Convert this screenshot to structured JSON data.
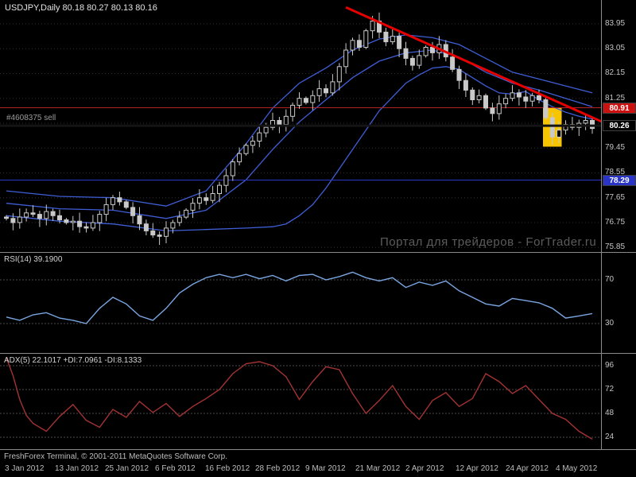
{
  "terminal": {
    "symbol_label": "USDJPY,Daily  80.18 80.27 80.13 80.16",
    "order_label": "#4608375 sell",
    "watermark": "Портал для трейдеров - ForTrader.ru",
    "status_bar": "FreshForex Terminal, © 2001-2011 MetaQuotes Software Corp."
  },
  "colors": {
    "background": "#000000",
    "grid": "#2f2f2f",
    "candle": "#c9c9c9",
    "band": "#3f5ed6",
    "trendline": "#e60000",
    "highlight": "#f7c500",
    "rsi_line": "#79a5e0",
    "adx_line": "#a33333",
    "separator": "#8a8a8a",
    "axis_text": "#c4c4c4",
    "level_line": "#4a4a4a"
  },
  "indicators": {
    "rsi": {
      "label": "RSI(14) 39.1900",
      "value": 39.19
    },
    "adx": {
      "label": "ADX(5) 22.1017 +DI:7.0961 -DI:8.1333",
      "adx": 22.1017,
      "plus_di": 7.0961,
      "minus_di": 8.1333
    }
  },
  "time_axis": [
    "3 Jan 2012",
    "13 Jan 2012",
    "25 Jan 2012",
    "6 Feb 2012",
    "16 Feb 2012",
    "28 Feb 2012",
    "9 Mar 2012",
    "21 Mar 2012",
    "2 Apr 2012",
    "12 Apr 2012",
    "24 Apr 2012",
    "4 May 2012"
  ],
  "chart_data": [
    {
      "type": "candlestick",
      "title": "USDJPY,Daily",
      "timeframe": "Daily",
      "ohlc_current": {
        "open": 80.18,
        "high": 80.27,
        "low": 80.13,
        "close": 80.16
      },
      "ylim": [
        75.66,
        84.81
      ],
      "grid_levels": [
        83.95,
        83.05,
        82.15,
        81.25,
        80.35,
        79.45,
        78.55,
        77.65,
        76.75,
        75.85
      ],
      "axis_labels": [
        "83.95",
        "83.05",
        "82.15",
        "81.25",
        "79.45",
        "78.55",
        "77.65",
        "76.75",
        "75.85"
      ],
      "first_open": 76.95,
      "closes": [
        76.9,
        76.75,
        76.95,
        77.1,
        77.05,
        76.9,
        77.15,
        77.0,
        76.85,
        76.75,
        76.8,
        76.6,
        76.55,
        76.75,
        77.05,
        77.4,
        77.65,
        77.5,
        77.3,
        77.0,
        76.7,
        76.45,
        76.3,
        76.25,
        76.55,
        76.75,
        76.95,
        77.2,
        77.45,
        77.65,
        77.55,
        77.8,
        78.1,
        78.45,
        78.95,
        79.25,
        79.55,
        79.7,
        80.0,
        80.2,
        80.45,
        80.3,
        80.6,
        81.0,
        81.25,
        81.1,
        81.35,
        81.6,
        81.45,
        81.85,
        82.4,
        83.0,
        83.35,
        83.1,
        83.7,
        84.05,
        83.65,
        83.3,
        83.5,
        83.05,
        82.7,
        82.45,
        82.8,
        83.1,
        82.9,
        83.2,
        82.75,
        82.3,
        81.9,
        81.55,
        81.2,
        81.35,
        80.9,
        80.7,
        81.05,
        81.25,
        81.45,
        81.3,
        81.15,
        81.35,
        81.2,
        80.55,
        79.85,
        80.1,
        80.3,
        80.2,
        80.35,
        80.45,
        80.16
      ],
      "bands": {
        "upper": [
          [
            0,
            77.9
          ],
          [
            8,
            77.7
          ],
          [
            16,
            77.65
          ],
          [
            24,
            77.35
          ],
          [
            30,
            77.9
          ],
          [
            36,
            79.6
          ],
          [
            40,
            80.9
          ],
          [
            44,
            81.8
          ],
          [
            48,
            82.35
          ],
          [
            52,
            83.0
          ],
          [
            56,
            83.4
          ],
          [
            60,
            83.55
          ],
          [
            64,
            83.45
          ],
          [
            68,
            83.2
          ],
          [
            72,
            82.7
          ],
          [
            76,
            82.2
          ],
          [
            80,
            81.95
          ],
          [
            84,
            81.7
          ],
          [
            88,
            81.45
          ]
        ],
        "middle": [
          [
            0,
            77.45
          ],
          [
            8,
            77.25
          ],
          [
            16,
            77.2
          ],
          [
            24,
            76.9
          ],
          [
            30,
            77.2
          ],
          [
            36,
            78.3
          ],
          [
            40,
            79.4
          ],
          [
            44,
            80.4
          ],
          [
            48,
            81.2
          ],
          [
            52,
            82.0
          ],
          [
            56,
            82.6
          ],
          [
            60,
            82.9
          ],
          [
            64,
            83.0
          ],
          [
            68,
            82.75
          ],
          [
            72,
            82.2
          ],
          [
            76,
            81.8
          ],
          [
            80,
            81.55
          ],
          [
            84,
            81.25
          ],
          [
            88,
            80.95
          ]
        ],
        "lower": [
          [
            0,
            77.0
          ],
          [
            8,
            76.8
          ],
          [
            16,
            76.7
          ],
          [
            24,
            76.45
          ],
          [
            30,
            76.5
          ],
          [
            36,
            76.55
          ],
          [
            40,
            76.6
          ],
          [
            42,
            76.7
          ],
          [
            44,
            77.0
          ],
          [
            46,
            77.4
          ],
          [
            48,
            78.0
          ],
          [
            50,
            78.7
          ],
          [
            52,
            79.4
          ],
          [
            54,
            80.1
          ],
          [
            56,
            80.8
          ],
          [
            58,
            81.3
          ],
          [
            60,
            81.8
          ],
          [
            62,
            82.1
          ],
          [
            64,
            82.35
          ],
          [
            66,
            82.4
          ],
          [
            68,
            82.3
          ],
          [
            70,
            82.0
          ],
          [
            72,
            81.7
          ],
          [
            74,
            81.45
          ],
          [
            76,
            81.4
          ],
          [
            78,
            81.5
          ],
          [
            80,
            81.2
          ],
          [
            82,
            80.95
          ],
          [
            84,
            80.75
          ],
          [
            86,
            80.6
          ],
          [
            88,
            80.5
          ]
        ]
      },
      "trendline": {
        "i1": 51,
        "p1": 84.55,
        "i2": 89.5,
        "p2": 80.4
      },
      "hlines": [
        {
          "label": "80.91",
          "price": 80.91,
          "color": "#b22222",
          "badge_color": "#cc1111",
          "width": 1,
          "layer": "under"
        },
        {
          "label": "80.26",
          "price": 80.26,
          "color": "#141414",
          "badge_color": "#000000",
          "width": 3,
          "layer": "over"
        },
        {
          "label": "78.29",
          "price": 78.29,
          "color": "#2a35c8",
          "badge_color": "#2a35c8",
          "width": 1,
          "layer": "under"
        }
      ],
      "highlight_zone": {
        "i1": 80.6,
        "i2": 83.4,
        "p_top": 80.9,
        "p_bottom": 79.5
      }
    },
    {
      "type": "line",
      "name": "RSI(14)",
      "last_value": 39.19,
      "range": [
        0,
        100
      ],
      "levels": [
        70,
        30
      ],
      "points": [
        [
          0,
          36
        ],
        [
          2,
          33
        ],
        [
          4,
          38
        ],
        [
          6,
          40
        ],
        [
          8,
          35
        ],
        [
          10,
          33
        ],
        [
          12,
          30
        ],
        [
          14,
          44
        ],
        [
          16,
          54
        ],
        [
          18,
          48
        ],
        [
          20,
          37
        ],
        [
          22,
          33
        ],
        [
          24,
          44
        ],
        [
          26,
          58
        ],
        [
          28,
          66
        ],
        [
          30,
          72
        ],
        [
          32,
          75
        ],
        [
          34,
          72
        ],
        [
          36,
          75
        ],
        [
          38,
          71
        ],
        [
          40,
          74
        ],
        [
          42,
          69
        ],
        [
          44,
          74
        ],
        [
          46,
          75
        ],
        [
          48,
          70
        ],
        [
          50,
          73
        ],
        [
          52,
          77
        ],
        [
          54,
          72
        ],
        [
          56,
          69
        ],
        [
          58,
          72
        ],
        [
          60,
          63
        ],
        [
          62,
          68
        ],
        [
          64,
          65
        ],
        [
          66,
          69
        ],
        [
          68,
          60
        ],
        [
          70,
          54
        ],
        [
          72,
          48
        ],
        [
          74,
          46
        ],
        [
          76,
          53
        ],
        [
          78,
          51
        ],
        [
          80,
          49
        ],
        [
          82,
          44
        ],
        [
          84,
          35
        ],
        [
          86,
          37
        ],
        [
          88,
          39.19
        ]
      ]
    },
    {
      "type": "line",
      "name": "ADX(5)",
      "last_value": 22.1017,
      "levels": [
        96,
        72,
        48,
        24
      ],
      "points": [
        [
          0,
          104
        ],
        [
          1,
          86
        ],
        [
          2,
          62
        ],
        [
          3,
          46
        ],
        [
          4,
          38
        ],
        [
          6,
          30
        ],
        [
          8,
          45
        ],
        [
          10,
          57
        ],
        [
          12,
          41
        ],
        [
          14,
          34
        ],
        [
          16,
          52
        ],
        [
          18,
          44
        ],
        [
          20,
          60
        ],
        [
          22,
          49
        ],
        [
          24,
          58
        ],
        [
          26,
          45
        ],
        [
          28,
          55
        ],
        [
          30,
          63
        ],
        [
          32,
          72
        ],
        [
          34,
          88
        ],
        [
          36,
          98
        ],
        [
          38,
          100
        ],
        [
          40,
          96
        ],
        [
          42,
          85
        ],
        [
          44,
          62
        ],
        [
          46,
          80
        ],
        [
          48,
          95
        ],
        [
          50,
          92
        ],
        [
          52,
          68
        ],
        [
          54,
          48
        ],
        [
          56,
          61
        ],
        [
          58,
          76
        ],
        [
          60,
          55
        ],
        [
          62,
          42
        ],
        [
          64,
          61
        ],
        [
          66,
          69
        ],
        [
          68,
          55
        ],
        [
          70,
          63
        ],
        [
          72,
          88
        ],
        [
          74,
          80
        ],
        [
          76,
          68
        ],
        [
          78,
          76
        ],
        [
          80,
          62
        ],
        [
          82,
          48
        ],
        [
          84,
          42
        ],
        [
          86,
          30
        ],
        [
          88,
          22.1
        ]
      ]
    }
  ]
}
